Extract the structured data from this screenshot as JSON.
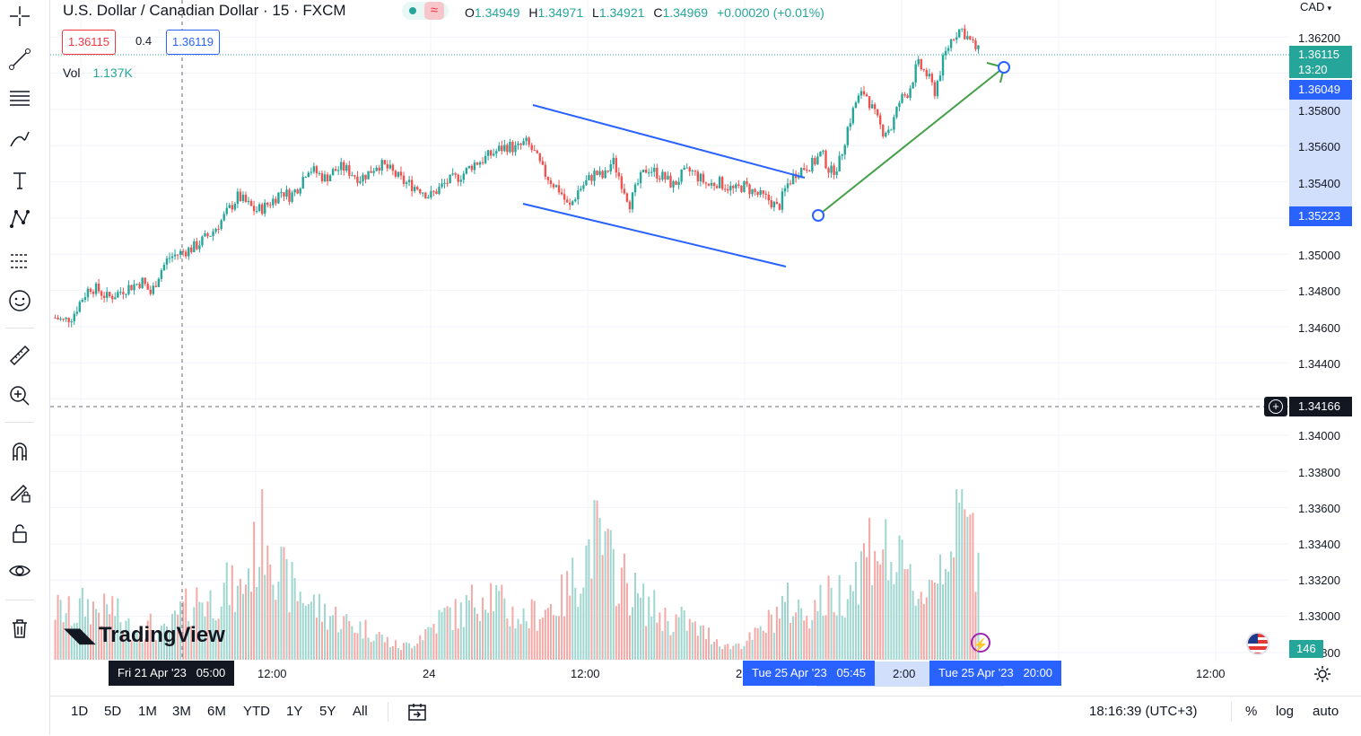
{
  "header": {
    "title": "U.S. Dollar / Canadian Dollar · 15 · FXCM",
    "ohlc": [
      {
        "k": "O",
        "v": "1.34949"
      },
      {
        "k": "H",
        "v": "1.34971"
      },
      {
        "k": "L",
        "v": "1.34921"
      },
      {
        "k": "C",
        "v": "1.34969"
      }
    ],
    "change": "+0.00020 (+0.01%)",
    "sell_price": "1.36115",
    "spread": "0.4",
    "buy_price": "1.36119",
    "vol_label": "Vol",
    "vol_value": "1.137K"
  },
  "price_axis": {
    "currency": "CAD",
    "labels": [
      "1.36200",
      "1.35800",
      "1.35600",
      "1.35400",
      "1.35000",
      "1.34800",
      "1.34600",
      "1.34400",
      "1.34000",
      "1.33800",
      "1.33600",
      "1.33400",
      "1.33200",
      "1.33000",
      "1.32800"
    ],
    "current_price": "1.36115",
    "countdown": "13:20",
    "drawing_price_top": "1.36049",
    "drawing_price_bottom": "1.35223",
    "crosshair_price": "1.34166",
    "volume_tag": "146"
  },
  "time_axis": {
    "labels": [
      "12:00",
      "24",
      "12:00",
      "12:00"
    ],
    "crosshair_time": "Fri 21 Apr '23   05:00",
    "drawing_start": "Tue 25 Apr '23   05:45",
    "drawing_end": "Tue 25 Apr '23   20:00",
    "partial_1": "2",
    "partial_2": "2:00"
  },
  "bottom": {
    "ranges": [
      "1D",
      "5D",
      "1M",
      "3M",
      "6M",
      "YTD",
      "1Y",
      "5Y",
      "All"
    ],
    "clock": "18:16:39 (UTC+3)",
    "percent": "%",
    "log": "log",
    "auto": "auto"
  },
  "logo": "TradingView",
  "colors": {
    "up": "#26a69a",
    "down": "#ef5350",
    "channel": "#2962ff",
    "trend": "#43a047"
  },
  "chart_data": {
    "type": "candlestick",
    "symbol": "USDCAD",
    "interval": "15",
    "ylim": [
      1.3275,
      1.3638
    ],
    "price_path": [
      1.3465,
      1.3463,
      1.3466,
      1.3475,
      1.3482,
      1.348,
      1.3476,
      1.3478,
      1.3481,
      1.3483,
      1.3485,
      1.3478,
      1.349,
      1.3498,
      1.35,
      1.3502,
      1.3504,
      1.3508,
      1.3512,
      1.3518,
      1.3525,
      1.3532,
      1.3528,
      1.3524,
      1.3526,
      1.353,
      1.3535,
      1.3532,
      1.3538,
      1.3548,
      1.3545,
      1.3542,
      1.3546,
      1.3548,
      1.3545,
      1.3542,
      1.3545,
      1.355,
      1.3548,
      1.3544,
      1.354,
      1.3538,
      1.3536,
      1.3532,
      1.3536,
      1.354,
      1.3542,
      1.3545,
      1.355,
      1.3552,
      1.3555,
      1.3558,
      1.356,
      1.3558,
      1.3562,
      1.3556,
      1.3546,
      1.354,
      1.3535,
      1.3525,
      1.3535,
      1.354,
      1.3545,
      1.3542,
      1.3552,
      1.354,
      1.3528,
      1.354,
      1.3548,
      1.3545,
      1.3542,
      1.3538,
      1.3544,
      1.3546,
      1.3542,
      1.3538,
      1.354,
      1.3538,
      1.3535,
      1.3538,
      1.3535,
      1.3532,
      1.353,
      1.3525,
      1.3538,
      1.3545,
      1.3548,
      1.355,
      1.3556,
      1.3545,
      1.355,
      1.357,
      1.3585,
      1.359,
      1.3578,
      1.3568,
      1.357,
      1.3585,
      1.359,
      1.3605,
      1.36,
      1.359,
      1.3608,
      1.362,
      1.3625,
      1.3618,
      1.3612
    ],
    "volume_path": [
      0.32,
      0.3,
      0.28,
      0.35,
      0.33,
      0.3,
      0.34,
      0.22,
      0.2,
      0.18,
      0.22,
      0.16,
      0.2,
      0.3,
      0.34,
      0.4,
      0.36,
      0.42,
      0.46,
      0.4,
      0.55,
      0.7,
      0.88,
      0.62,
      0.48,
      0.44,
      0.4,
      0.34,
      0.3,
      0.28,
      0.24,
      0.22,
      0.2,
      0.18,
      0.14,
      0.1,
      0.08,
      0.1,
      0.16,
      0.2,
      0.26,
      0.3,
      0.28,
      0.34,
      0.4,
      0.46,
      0.38,
      0.3,
      0.28,
      0.26,
      0.3,
      0.32,
      0.36,
      0.4,
      0.52,
      0.62,
      0.78,
      0.7,
      0.58,
      0.52,
      0.44,
      0.36,
      0.34,
      0.28,
      0.24,
      0.26,
      0.22,
      0.18,
      0.16,
      0.12,
      0.08,
      0.1,
      0.12,
      0.16,
      0.22,
      0.3,
      0.36,
      0.32,
      0.3,
      0.34,
      0.38,
      0.4,
      0.44,
      0.52,
      0.62,
      0.78,
      0.7,
      0.62,
      0.55,
      0.48,
      0.42,
      0.48,
      0.62,
      0.76,
      0.92,
      0.82,
      0.66
    ]
  }
}
